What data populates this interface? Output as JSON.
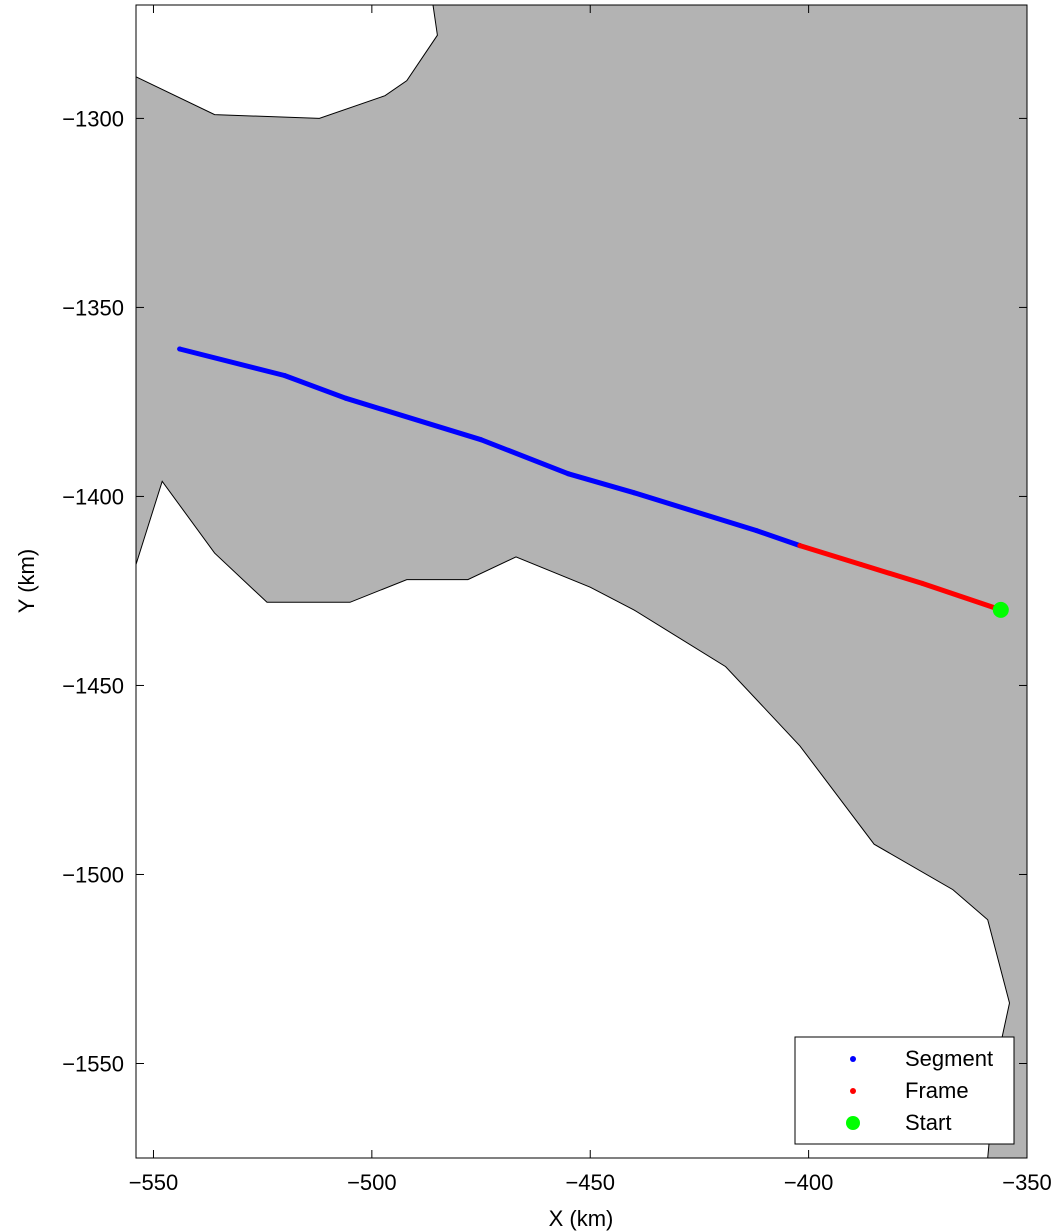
{
  "chart_data": {
    "type": "scatter",
    "title": "",
    "xlabel": "X (km)",
    "ylabel": "Y (km)",
    "xlim": [
      -554,
      -350
    ],
    "ylim": [
      -1575,
      -1270
    ],
    "x_ticks": [
      -550,
      -500,
      -450,
      -400,
      -350
    ],
    "y_ticks": [
      -1300,
      -1350,
      -1400,
      -1450,
      -1500,
      -1550
    ],
    "x_tick_labels": [
      "−550",
      "−500",
      "−450",
      "−400",
      "−350"
    ],
    "y_tick_labels": [
      "−1300",
      "−1350",
      "−1400",
      "−1450",
      "−1500",
      "−1550"
    ],
    "grid": false,
    "legend_position": "bottom-right",
    "background_region": {
      "color": "#b3b3b3",
      "outline_color": "#000000",
      "upper_boundary": [
        [
          -554,
          -1289
        ],
        [
          -536,
          -1299
        ],
        [
          -512,
          -1300
        ],
        [
          -497,
          -1294
        ],
        [
          -492,
          -1290
        ],
        [
          -485,
          -1278
        ],
        [
          -486,
          -1270
        ]
      ],
      "lower_boundary": [
        [
          -554,
          -1418
        ],
        [
          -548,
          -1396
        ],
        [
          -536,
          -1415
        ],
        [
          -524,
          -1428
        ],
        [
          -505,
          -1428
        ],
        [
          -492,
          -1422
        ],
        [
          -478,
          -1422
        ],
        [
          -467,
          -1416
        ],
        [
          -450,
          -1424
        ],
        [
          -440,
          -1430
        ],
        [
          -419,
          -1445
        ],
        [
          -402,
          -1466
        ],
        [
          -385,
          -1492
        ],
        [
          -367,
          -1504
        ],
        [
          -359,
          -1512
        ],
        [
          -354,
          -1534
        ],
        [
          -357,
          -1550
        ],
        [
          -359,
          -1575
        ]
      ]
    },
    "series": [
      {
        "name": "Segment",
        "color": "#0000ff",
        "marker": "dot",
        "points": [
          [
            -544,
            -1361
          ],
          [
            -520,
            -1368
          ],
          [
            -506,
            -1374
          ],
          [
            -475,
            -1385
          ],
          [
            -455,
            -1394
          ],
          [
            -440,
            -1399
          ],
          [
            -412,
            -1409
          ],
          [
            -402,
            -1413
          ]
        ]
      },
      {
        "name": "Frame",
        "color": "#ff0000",
        "marker": "dot",
        "points": [
          [
            -402,
            -1413
          ],
          [
            -388,
            -1418
          ],
          [
            -374,
            -1423
          ],
          [
            -356,
            -1430
          ]
        ]
      },
      {
        "name": "Start",
        "color": "#00ff00",
        "marker": "circle",
        "points": [
          [
            -356,
            -1430
          ]
        ]
      }
    ]
  }
}
